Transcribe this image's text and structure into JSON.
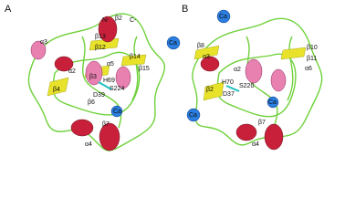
{
  "panels": [
    {
      "label": "A",
      "annotations": [
        "N-",
        "β2",
        "C-",
        "Ca",
        "β13",
        "β12",
        "α3",
        "β14",
        "α5",
        "β15",
        "β3",
        "H69",
        "S224",
        "D39",
        "β4",
        "α2",
        "β6",
        "Ca",
        "β7",
        "α4"
      ]
    },
    {
      "label": "B",
      "annotations": [
        "Ca",
        "β8",
        "α3",
        "β10",
        "β11",
        "α6",
        "H70",
        "S220",
        "D37",
        "β2",
        "α2",
        "Ca",
        "Ca",
        "β7",
        "α4"
      ]
    }
  ]
}
